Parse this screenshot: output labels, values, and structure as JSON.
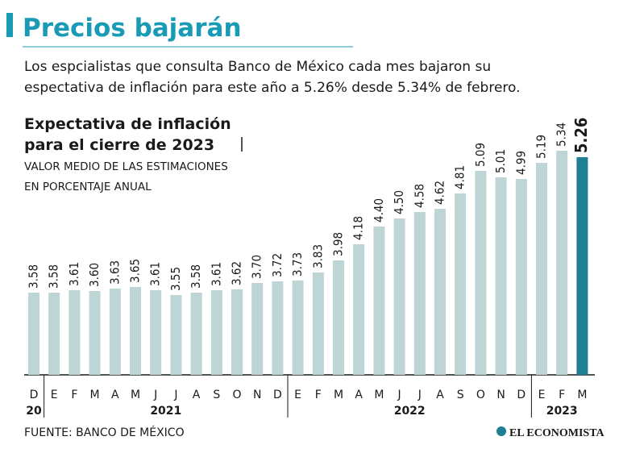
{
  "header": {
    "title": "Precios bajarán",
    "description": [
      "Los espcialistas que consulta Banco de México cada mes bajaron su",
      "espectativa de inflación para este año a 5.26% desde 5.34% de febrero."
    ]
  },
  "chart_data": {
    "type": "bar",
    "title": [
      "Expectativa de inflación",
      "para el cierre de 2023"
    ],
    "subtitle": [
      "VALOR MEDIO DE LAS ESTIMACIONES",
      "EN PORCENTAJE ANUAL"
    ],
    "categories": [
      "D",
      "E",
      "F",
      "M",
      "A",
      "M",
      "J",
      "J",
      "A",
      "S",
      "O",
      "N",
      "D",
      "E",
      "F",
      "M",
      "A",
      "M",
      "J",
      "J",
      "A",
      "S",
      "O",
      "N",
      "D",
      "E",
      "F",
      "M"
    ],
    "years": [
      "20",
      "2021",
      "2021",
      "2021",
      "2021",
      "2021",
      "2021",
      "2021",
      "2021",
      "2021",
      "2021",
      "2021",
      "2021",
      "2022",
      "2022",
      "2022",
      "2022",
      "2022",
      "2022",
      "2022",
      "2022",
      "2022",
      "2022",
      "2022",
      "2022",
      "2023",
      "2023",
      "2023"
    ],
    "values": [
      3.58,
      3.58,
      3.61,
      3.6,
      3.63,
      3.65,
      3.61,
      3.55,
      3.58,
      3.61,
      3.62,
      3.7,
      3.72,
      3.73,
      3.83,
      3.98,
      4.18,
      4.4,
      4.5,
      4.58,
      4.62,
      4.81,
      5.09,
      5.01,
      4.99,
      5.19,
      5.34,
      5.26
    ],
    "value_labels": [
      "3.58",
      "3.58",
      "3.61",
      "3.60",
      "3.63",
      "3.65",
      "3.61",
      "3.55",
      "3.58",
      "3.61",
      "3.62",
      "3.70",
      "3.72",
      "3.73",
      "3.83",
      "3.98",
      "4.18",
      "4.40",
      "4.50",
      "4.58",
      "4.62",
      "4.81",
      "5.09",
      "5.01",
      "4.99",
      "5.19",
      "5.34",
      "5.26"
    ],
    "colors": [
      "#bdd5d4",
      "#bdd5d4",
      "#bdd5d4",
      "#bdd5d4",
      "#bdd5d4",
      "#bdd5d4",
      "#bdd5d4",
      "#bdd5d4",
      "#bdd5d4",
      "#bdd5d4",
      "#bdd5d4",
      "#bdd5d4",
      "#bdd5d4",
      "#bdd5d4",
      "#bdd5d4",
      "#bdd5d4",
      "#bdd5d4",
      "#bdd5d4",
      "#bdd5d4",
      "#bdd5d4",
      "#bdd5d4",
      "#bdd5d4",
      "#bdd5d4",
      "#bdd5d4",
      "#bdd5d4",
      "#bdd5d4",
      "#bdd5d4",
      "#1e7f95"
    ]
  },
  "footer": {
    "source": "FUENTE: BANCO DE MÉXICO",
    "brand": "EL ECONOMISTA"
  }
}
